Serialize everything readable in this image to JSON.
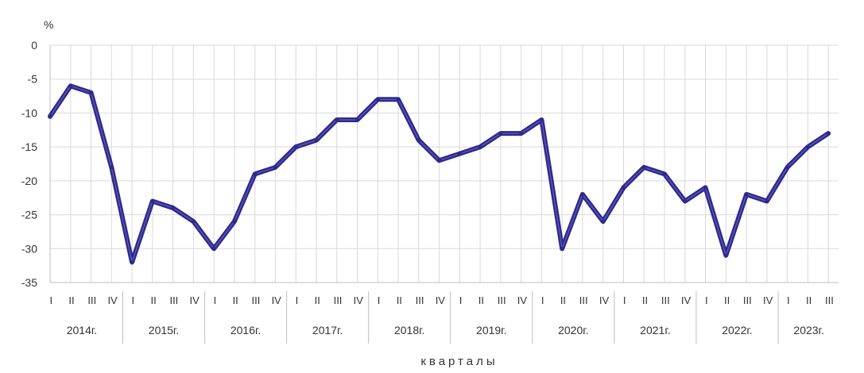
{
  "chart_data": {
    "type": "line",
    "ylabel": "%",
    "xlabel": "кварталы",
    "ylim": [
      -35,
      0
    ],
    "yticks": [
      0,
      -5,
      -10,
      -15,
      -20,
      -25,
      -30,
      -35
    ],
    "grid": true,
    "quarter_labels": [
      "I",
      "II",
      "III",
      "IV"
    ],
    "years": [
      "2014г.",
      "2015г.",
      "2016г.",
      "2017г.",
      "2018г.",
      "2019г.",
      "2020г.",
      "2021г.",
      "2022г.",
      "2023г."
    ],
    "x": [
      "2014 I",
      "2014 II",
      "2014 III",
      "2014 IV",
      "2015 I",
      "2015 II",
      "2015 III",
      "2015 IV",
      "2016 I",
      "2016 II",
      "2016 III",
      "2016 IV",
      "2017 I",
      "2017 II",
      "2017 III",
      "2017 IV",
      "2018 I",
      "2018 II",
      "2018 III",
      "2018 IV",
      "2019 I",
      "2019 II",
      "2019 III",
      "2019 IV",
      "2020 I",
      "2020 II",
      "2020 III",
      "2020 IV",
      "2021 I",
      "2021 II",
      "2021 III",
      "2021 IV",
      "2022 I",
      "2022 II",
      "2022 III",
      "2022 IV",
      "2023 I",
      "2023 II",
      "2023 III"
    ],
    "series": [
      {
        "color": "#2e2a8c",
        "values": [
          -10.5,
          -6,
          -7,
          -18,
          -32,
          -23,
          -24,
          -26,
          -30,
          -26,
          -19,
          -18,
          -15,
          -14,
          -11,
          -11,
          -8,
          -8,
          -14,
          -17,
          -16,
          -15,
          -13,
          -13,
          -11,
          -30,
          -22,
          -26,
          -21,
          -18,
          -19,
          -23,
          -21,
          -31,
          -22,
          -23,
          -18,
          -15,
          -13
        ]
      }
    ]
  }
}
